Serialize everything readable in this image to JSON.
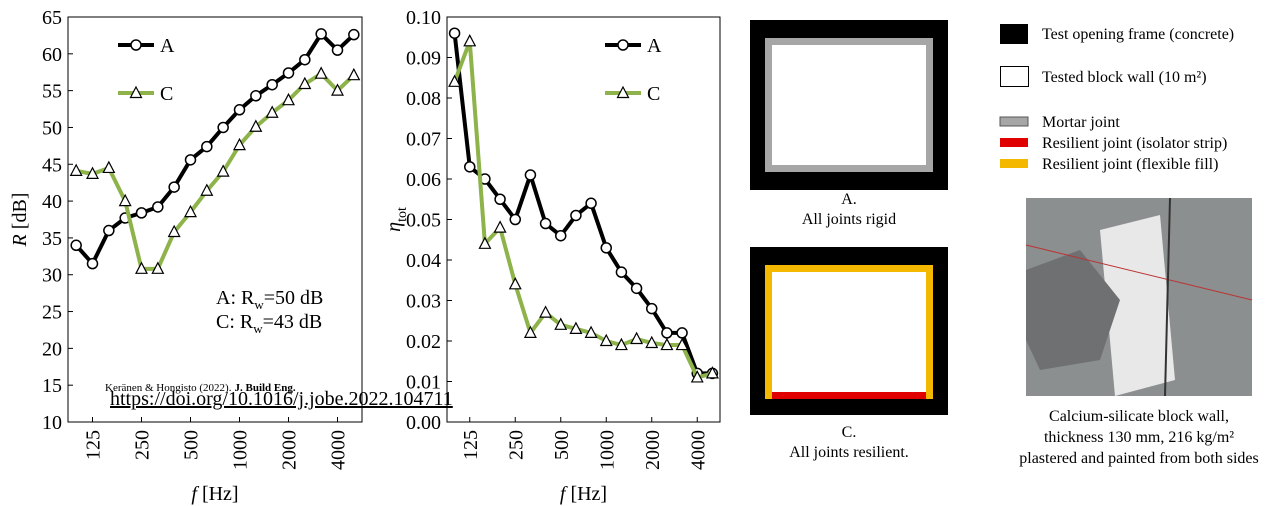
{
  "chart_data": [
    {
      "type": "line",
      "ylabel_symbol": "R",
      "ylabel_unit": "[dB]",
      "xlabel_symbol": "f",
      "xlabel_unit": "[Hz]",
      "categories": [
        null,
        "125",
        null,
        null,
        "250",
        null,
        null,
        "500",
        null,
        null,
        "1000",
        null,
        null,
        "2000",
        null,
        null,
        "4000",
        null
      ],
      "series": [
        {
          "name": "A",
          "color": "#000000",
          "marker": "circle",
          "values": [
            34.0,
            31.5,
            36.0,
            37.7,
            38.4,
            39.2,
            41.9,
            45.6,
            47.4,
            50.0,
            52.4,
            54.3,
            55.8,
            57.4,
            59.2,
            62.7,
            60.5,
            62.6
          ]
        },
        {
          "name": "C",
          "color": "#8db34a",
          "marker": "triangle",
          "values": [
            44.1,
            43.7,
            44.5,
            40.0,
            30.8,
            30.8,
            35.8,
            38.5,
            41.4,
            44.0,
            47.6,
            50.1,
            52.0,
            53.7,
            55.9,
            57.3,
            55.0,
            57.1
          ]
        }
      ],
      "ylim": [
        10,
        65
      ],
      "yticks": [
        10,
        15,
        20,
        25,
        30,
        35,
        40,
        45,
        50,
        55,
        60,
        65
      ],
      "legend": "upper left",
      "annotations": [
        {
          "prefix": "A: R",
          "subscript": "w",
          "suffix": "=50 dB"
        },
        {
          "prefix": "C: R",
          "subscript": "w",
          "suffix": "=43 dB"
        }
      ],
      "citation": {
        "authors": "Keränen & Hongisto (2022).",
        "journal": "J. Build Eng.",
        "link": "https://doi.org/10.1016/j.jobe.2022.104711"
      }
    },
    {
      "type": "line",
      "ylabel_symbol": "η",
      "ylabel_subscript": "tot",
      "xlabel_symbol": "f",
      "xlabel_unit": "[Hz]",
      "categories": [
        null,
        "125",
        null,
        null,
        "250",
        null,
        null,
        "500",
        null,
        null,
        "1000",
        null,
        null,
        "2000",
        null,
        null,
        "4000",
        null
      ],
      "series": [
        {
          "name": "A",
          "color": "#000000",
          "marker": "circle",
          "values": [
            0.096,
            0.063,
            0.06,
            0.055,
            0.05,
            0.061,
            0.049,
            0.046,
            0.051,
            0.054,
            0.043,
            0.037,
            0.033,
            0.028,
            0.022,
            0.022,
            0.012,
            0.012
          ]
        },
        {
          "name": "C",
          "color": "#8db34a",
          "marker": "triangle",
          "values": [
            0.084,
            0.094,
            0.044,
            0.048,
            0.034,
            0.022,
            0.027,
            0.024,
            0.023,
            0.022,
            0.02,
            0.019,
            0.0205,
            0.0195,
            0.019,
            0.019,
            0.011,
            0.012
          ]
        }
      ],
      "ylim": [
        0,
        0.1
      ],
      "yticks": [
        {
          "value": 0,
          "label": "0.00"
        },
        0.01,
        0.02,
        0.03,
        0.04,
        0.05,
        0.06,
        0.07,
        0.08,
        0.09,
        {
          "value": 0.1,
          "label": "0.10"
        }
      ],
      "legend": "upper right"
    }
  ],
  "diagrams": [
    {
      "letter": "A.",
      "caption": "All joints rigid"
    },
    {
      "letter": "C.",
      "caption": "All joints resilient."
    }
  ],
  "legend": [
    "Test opening frame (concrete)",
    "Tested block wall (10 m²)",
    "Mortar joint",
    "Resilient joint (isolator strip)",
    "Resilient joint (flexible fill)"
  ],
  "photo": {
    "caption": [
      "Calcium-silicate block wall,",
      "thickness 130 mm, 216 kg/m²",
      "plastered and painted from both sides"
    ]
  }
}
